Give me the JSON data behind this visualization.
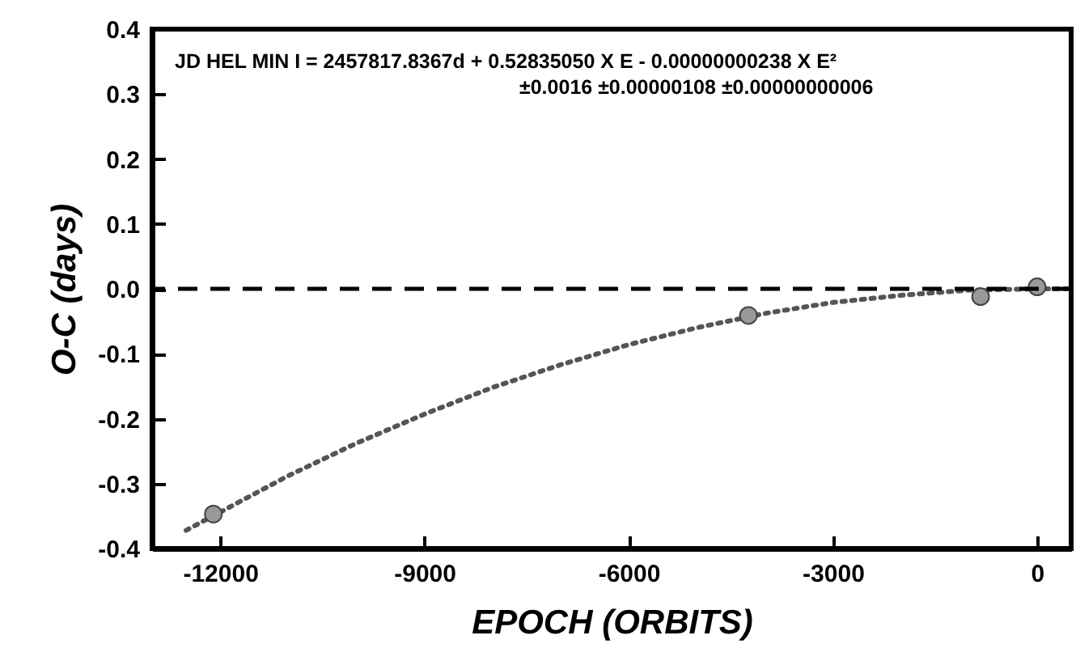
{
  "chart_data": {
    "type": "scatter",
    "xlabel": "EPOCH (ORBITS)",
    "ylabel": "O-C (days)",
    "annotations": [
      "JD HEL MIN I = 2457817.8367d +  0.52835050 X E  - 0.00000000238 X E²",
      "±0.0016        ±0.00000108        ±0.00000000006"
    ],
    "xlim": [
      -13000,
      500
    ],
    "xticks": [
      -12000,
      -9000,
      -6000,
      -3000,
      0
    ],
    "ylim": [
      -0.4,
      0.4
    ],
    "yticks": [
      {
        "value": 0.4,
        "label": "0.4"
      },
      {
        "value": 0.3,
        "label": "0.3"
      },
      {
        "value": 0.2,
        "label": "0.2"
      },
      {
        "value": 0.1,
        "label": "0.1"
      },
      {
        "value": 0,
        "label": "0.0"
      },
      {
        "value": -0.1,
        "label": "-0.1"
      },
      {
        "value": -0.2,
        "label": "-0.2"
      },
      {
        "value": -0.3,
        "label": "-0.3"
      },
      {
        "value": -0.4,
        "label": "-0.4"
      }
    ],
    "grid": false,
    "ref_lines": [
      {
        "axis": "y",
        "value": 0,
        "color": "#000000",
        "line_style": "dashed"
      }
    ],
    "series": [
      {
        "type": "line",
        "color": "#555555",
        "line_style": "dotted",
        "marker": "none",
        "x": [
          -12500,
          -11000,
          -10000,
          -9000,
          -8000,
          -7000,
          -6000,
          -5000,
          -4000,
          -3000,
          -2000,
          -1000,
          0,
          500
        ],
        "values": [
          -0.372,
          -0.288,
          -0.238,
          -0.193,
          -0.152,
          -0.117,
          -0.086,
          -0.06,
          -0.038,
          -0.021,
          -0.01,
          -0.002,
          0.0,
          0.0
        ]
      },
      {
        "color": "#999999",
        "marker": "circle",
        "x": [
          -12100,
          -4240,
          -830,
          0
        ],
        "values": [
          -0.347,
          -0.041,
          -0.012,
          0.003
        ]
      }
    ]
  }
}
